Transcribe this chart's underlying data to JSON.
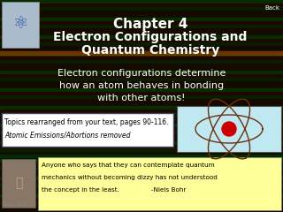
{
  "title_line1": "Chapter 4",
  "title_line2": "Electron Configurations and",
  "title_line3": "Quantum Chemistry",
  "subtitle_line1": "Electron configurations determine",
  "subtitle_line2": "how an atom behaves in bonding",
  "subtitle_line3": "with other atoms!",
  "topics_line1": "Topics rearranged from your text, pages 90-116.",
  "topics_line2": "Atomic Emissions/Abortions removed",
  "quote_line1": "Anyone who says that they can contemplate quantum",
  "quote_line2": "mechanics without becoming dizzy has not understood",
  "quote_line3": "the concept in the least.                -Niels Bohr",
  "back_label": "Back",
  "bg_color": "#150a00",
  "title_color": "#ffffff",
  "subtitle_color": "#ffffff",
  "topics_bg": "#ffffff",
  "topics_text_color": "#000000",
  "quote_bg": "#ffff99",
  "quote_text_color": "#000000",
  "back_color": "#ffffff",
  "figsize": [
    3.2,
    2.4
  ],
  "dpi": 100
}
